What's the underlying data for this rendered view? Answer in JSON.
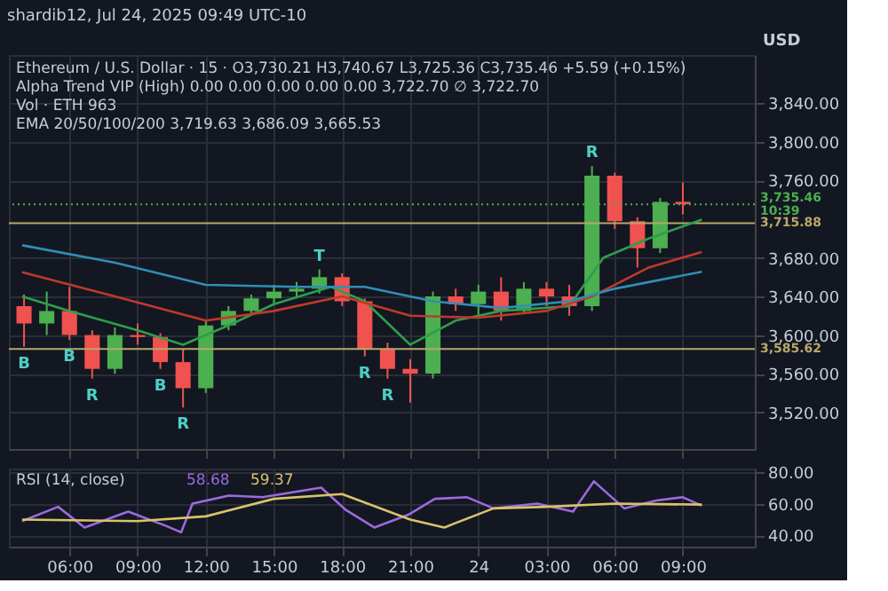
{
  "chart_data": [
    {
      "type": "candlestick",
      "subtitle": "shardib12, Jul 24, 2025 09:49 UTC-10",
      "title": "Ethereum / U.S. Dollar · 15 · O3,730.21 H3,740.67 L3,725.36 C3,735.46 +5.59 (+0.15%)",
      "ylabel": "USD",
      "x": [
        "2025-07-23T04:00",
        "2025-07-23T05:00",
        "2025-07-23T06:00",
        "2025-07-23T07:00",
        "2025-07-23T08:00",
        "2025-07-23T09:00",
        "2025-07-23T10:00",
        "2025-07-23T11:00",
        "2025-07-23T12:00",
        "2025-07-23T13:00",
        "2025-07-23T14:00",
        "2025-07-23T15:00",
        "2025-07-23T16:00",
        "2025-07-23T17:00",
        "2025-07-23T18:00",
        "2025-07-23T19:00",
        "2025-07-23T20:00",
        "2025-07-23T21:00",
        "2025-07-23T22:00",
        "2025-07-23T23:00",
        "2025-07-24T00:00",
        "2025-07-24T01:00",
        "2025-07-24T02:00",
        "2025-07-24T03:00",
        "2025-07-24T04:00",
        "2025-07-24T05:00",
        "2025-07-24T06:00",
        "2025-07-24T07:00",
        "2025-07-24T08:00",
        "2025-07-24T09:00"
      ],
      "ohlc": [
        [
          3630,
          3642,
          3588,
          3612
        ],
        [
          3612,
          3645,
          3600,
          3625
        ],
        [
          3625,
          3650,
          3595,
          3600
        ],
        [
          3600,
          3605,
          3555,
          3565
        ],
        [
          3565,
          3608,
          3560,
          3600
        ],
        [
          3600,
          3612,
          3590,
          3598
        ],
        [
          3598,
          3602,
          3565,
          3572
        ],
        [
          3572,
          3585,
          3525,
          3545
        ],
        [
          3545,
          3615,
          3540,
          3610
        ],
        [
          3610,
          3630,
          3605,
          3625
        ],
        [
          3625,
          3642,
          3620,
          3638
        ],
        [
          3638,
          3652,
          3632,
          3645
        ],
        [
          3645,
          3655,
          3638,
          3648
        ],
        [
          3648,
          3668,
          3643,
          3660
        ],
        [
          3660,
          3664,
          3630,
          3635
        ],
        [
          3635,
          3638,
          3578,
          3585
        ],
        [
          3585,
          3592,
          3555,
          3565
        ],
        [
          3565,
          3575,
          3530,
          3560
        ],
        [
          3560,
          3645,
          3555,
          3640
        ],
        [
          3640,
          3648,
          3625,
          3632
        ],
        [
          3632,
          3652,
          3618,
          3645
        ],
        [
          3645,
          3660,
          3615,
          3625
        ],
        [
          3625,
          3655,
          3622,
          3648
        ],
        [
          3648,
          3655,
          3630,
          3640
        ],
        [
          3640,
          3652,
          3620,
          3630
        ],
        [
          3630,
          3775,
          3625,
          3765
        ],
        [
          3765,
          3768,
          3710,
          3718
        ],
        [
          3718,
          3722,
          3670,
          3690
        ],
        [
          3690,
          3742,
          3685,
          3738
        ],
        [
          3738,
          3758,
          3725,
          3735.46
        ]
      ],
      "colors": [
        "#f0524f",
        "#4caf50",
        "#f0524f",
        "#f0524f",
        "#4caf50",
        "#f0524f",
        "#f0524f",
        "#f0524f",
        "#4caf50",
        "#4caf50",
        "#4caf50",
        "#4caf50",
        "#4caf50",
        "#4caf50",
        "#f0524f",
        "#f0524f",
        "#f0524f",
        "#f0524f",
        "#4caf50",
        "#f0524f",
        "#4caf50",
        "#f0524f",
        "#4caf50",
        "#f0524f",
        "#f0524f",
        "#4caf50",
        "#f0524f",
        "#f0524f",
        "#4caf50",
        "#f0524f"
      ],
      "series": [
        {
          "type": "line",
          "color": "#2e9e4a",
          "x": [
            "2025-07-23T03:55",
            "2025-07-23T06:00",
            "2025-07-23T09:00",
            "2025-07-23T11:00",
            "2025-07-23T13:00",
            "2025-07-23T15:00",
            "2025-07-23T17:30",
            "2025-07-23T19:00",
            "2025-07-23T21:00",
            "2025-07-23T23:00",
            "2025-07-24T01:00",
            "2025-07-24T04:00",
            "2025-07-24T05:30",
            "2025-07-24T07:30",
            "2025-07-24T09:50"
          ],
          "values": [
            3640,
            3625,
            3605,
            3590,
            3610,
            3632,
            3650,
            3635,
            3590,
            3615,
            3625,
            3630,
            3680,
            3700,
            3719.63
          ]
        },
        {
          "type": "line",
          "color": "#c0392b",
          "x": [
            "2025-07-23T03:55",
            "2025-07-23T08:00",
            "2025-07-23T12:00",
            "2025-07-23T15:00",
            "2025-07-23T18:00",
            "2025-07-23T21:00",
            "2025-07-24T00:00",
            "2025-07-24T03:00",
            "2025-07-24T05:00",
            "2025-07-24T07:30",
            "2025-07-24T09:50"
          ],
          "values": [
            3665,
            3640,
            3615,
            3625,
            3640,
            3620,
            3618,
            3625,
            3640,
            3670,
            3686.09
          ]
        },
        {
          "type": "line",
          "color": "#2f8fb5",
          "x": [
            "2025-07-23T03:55",
            "2025-07-23T08:00",
            "2025-07-23T12:00",
            "2025-07-23T16:00",
            "2025-07-23T19:00",
            "2025-07-23T22:00",
            "2025-07-24T01:00",
            "2025-07-24T04:00",
            "2025-07-24T06:00",
            "2025-07-24T09:50"
          ],
          "values": [
            3693,
            3675,
            3652,
            3650,
            3650,
            3635,
            3628,
            3635,
            3648,
            3665.53
          ]
        }
      ],
      "ref_lines": [
        {
          "axis": "y",
          "value": 3715.88,
          "label": "3,715.88",
          "color": "#b8a86a"
        },
        {
          "axis": "y",
          "value": 3585.62,
          "label": "3,585.62",
          "color": "#b8a86a"
        },
        {
          "axis": "y",
          "value": 3735.46,
          "label": "3,735.46\n10:39",
          "color": "#4caf50",
          "line_style": "dotted"
        }
      ],
      "annotations": [
        "Alpha Trend VIP (High) 0.00 0.00 0.00 0.00 0.00 3,722.70 ∅ 3,722.70",
        "Vol · ETH 963",
        "EMA 20/50/100/200 3,719.63 3,686.09 3,665.53",
        {
          "text": "B",
          "x": "2025-07-23T04:00",
          "y": 3588
        },
        {
          "text": "B",
          "x": "2025-07-23T06:00",
          "y": 3595
        },
        {
          "text": "R",
          "x": "2025-07-23T07:00",
          "y": 3555
        },
        {
          "text": "B",
          "x": "2025-07-23T10:00",
          "y": 3565
        },
        {
          "text": "R",
          "x": "2025-07-23T11:00",
          "y": 3525
        },
        {
          "text": "T",
          "x": "2025-07-23T17:00",
          "y": 3668
        },
        {
          "text": "R",
          "x": "2025-07-23T19:00",
          "y": 3578
        },
        {
          "text": "R",
          "x": "2025-07-23T20:00",
          "y": 3555
        },
        {
          "text": "R",
          "x": "2025-07-24T05:00",
          "y": 3775
        }
      ],
      "xlim": [
        "2025-07-23T03:20",
        "2025-07-24T12:10"
      ],
      "ylim": [
        3482,
        3890
      ],
      "yticks": [
        {
          "value": 3520,
          "label": "3,520.00"
        },
        {
          "value": 3560,
          "label": "3,560.00"
        },
        {
          "value": 3600,
          "label": "3,600.00"
        },
        {
          "value": 3640,
          "label": "3,640.00"
        },
        {
          "value": 3680,
          "label": "3,680.00"
        },
        {
          "value": 3760,
          "label": "3,760.00"
        },
        {
          "value": 3800,
          "label": "3,800.00"
        },
        {
          "value": 3840,
          "label": "3,840.00"
        }
      ],
      "xticks": [
        {
          "value": "2025-07-23T06:00",
          "label": null
        },
        {
          "value": "2025-07-23T09:00",
          "label": null
        },
        {
          "value": "2025-07-23T12:00",
          "label": null
        },
        {
          "value": "2025-07-23T15:00",
          "label": null
        },
        {
          "value": "2025-07-23T18:00",
          "label": null
        },
        {
          "value": "2025-07-23T21:00",
          "label": null
        },
        {
          "value": "2025-07-24T00:00",
          "label": null
        },
        {
          "value": "2025-07-24T03:00",
          "label": null
        },
        {
          "value": "2025-07-24T06:00",
          "label": null
        },
        {
          "value": "2025-07-24T09:00",
          "label": null
        }
      ],
      "tick_labels": "y",
      "grid": true
    },
    {
      "type": "line",
      "title": "RSI (14, close)",
      "annotations": [
        "58.68",
        "59.37"
      ],
      "series": [
        {
          "color": "#9c6ade",
          "x": [
            "2025-07-23T03:55",
            "2025-07-23T05:30",
            "2025-07-23T06:40",
            "2025-07-23T08:35",
            "2025-07-23T10:15",
            "2025-07-23T10:55",
            "2025-07-23T11:25",
            "2025-07-23T13:00",
            "2025-07-23T14:30",
            "2025-07-23T17:05",
            "2025-07-23T18:10",
            "2025-07-23T19:25",
            "2025-07-23T20:55",
            "2025-07-23T22:05",
            "2025-07-23T23:30",
            "2025-07-24T00:40",
            "2025-07-24T02:35",
            "2025-07-24T04:10",
            "2025-07-24T05:05",
            "2025-07-24T06:25",
            "2025-07-24T07:50",
            "2025-07-24T09:00",
            "2025-07-24T09:50"
          ],
          "values": [
            49,
            58,
            45,
            55,
            46,
            42,
            60,
            65,
            64,
            70,
            56,
            45,
            53,
            63,
            64,
            57,
            60,
            55,
            74,
            57,
            62,
            64,
            58.68
          ]
        },
        {
          "color": "#d8c36a",
          "x": [
            "2025-07-23T03:55",
            "2025-07-23T09:00",
            "2025-07-23T12:00",
            "2025-07-23T15:00",
            "2025-07-23T18:00",
            "2025-07-23T21:00",
            "2025-07-23T22:30",
            "2025-07-24T00:40",
            "2025-07-24T03:00",
            "2025-07-24T06:00",
            "2025-07-24T09:50"
          ],
          "values": [
            50,
            49,
            52,
            63,
            66,
            50,
            45,
            57,
            58,
            60,
            59.37
          ]
        }
      ],
      "xlim": [
        "2025-07-23T03:20",
        "2025-07-24T12:10"
      ],
      "ylim": [
        33,
        82
      ],
      "yticks": [
        {
          "value": 40,
          "label": "40.00"
        },
        {
          "value": 60,
          "label": "60.00"
        },
        {
          "value": 80,
          "label": "80.00"
        }
      ],
      "xticks": [
        {
          "value": "2025-07-23T06:00",
          "label": "06:00"
        },
        {
          "value": "2025-07-23T09:00",
          "label": "09:00"
        },
        {
          "value": "2025-07-23T12:00",
          "label": "12:00"
        },
        {
          "value": "2025-07-23T15:00",
          "label": "15:00"
        },
        {
          "value": "2025-07-23T18:00",
          "label": "18:00"
        },
        {
          "value": "2025-07-23T21:00",
          "label": "21:00"
        },
        {
          "value": "2025-07-24T00:00",
          "label": "24"
        },
        {
          "value": "2025-07-24T03:00",
          "label": "03:00"
        },
        {
          "value": "2025-07-24T06:00",
          "label": "06:00"
        },
        {
          "value": "2025-07-24T09:00",
          "label": "09:00"
        }
      ],
      "grid": true
    }
  ]
}
